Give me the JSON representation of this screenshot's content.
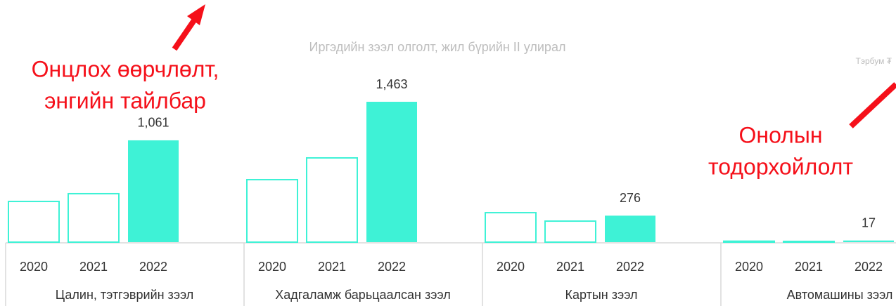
{
  "chart_data": {
    "type": "grouped-bar",
    "title": "Иргэдийн зээл олголт, жил бүрийн II улирал",
    "unit_label": "Тэрбум ₮",
    "color": "#3ef2d6",
    "highlight_index": 2,
    "groups": [
      {
        "name": "Цалин, тэтгэврийн зээл",
        "categories": [
          "2020",
          "2021",
          "2022"
        ],
        "values": [
          424,
          505,
          1061
        ],
        "value_labels": [
          null,
          null,
          "1,061"
        ]
      },
      {
        "name": "Хадгаламж барьцаалсан зээл",
        "categories": [
          "2020",
          "2021",
          "2022"
        ],
        "values": [
          651,
          878,
          1463
        ],
        "value_labels": [
          null,
          null,
          "1,463"
        ]
      },
      {
        "name": "Картын зээл",
        "categories": [
          "2020",
          "2021",
          "2022"
        ],
        "values": [
          307,
          219,
          276
        ],
        "value_labels": [
          null,
          null,
          "276"
        ]
      },
      {
        "name": "Автомашины зээл",
        "categories": [
          "2020",
          "2021",
          "2022"
        ],
        "values": [
          10,
          8,
          17
        ],
        "value_labels": [
          null,
          null,
          "17"
        ]
      }
    ]
  },
  "annotations": [
    {
      "lines": [
        "Онцлох өөрчлөлт,",
        "энгийн тайлбар"
      ]
    },
    {
      "lines": [
        "Онолын",
        "тодорхойлолт"
      ]
    }
  ]
}
